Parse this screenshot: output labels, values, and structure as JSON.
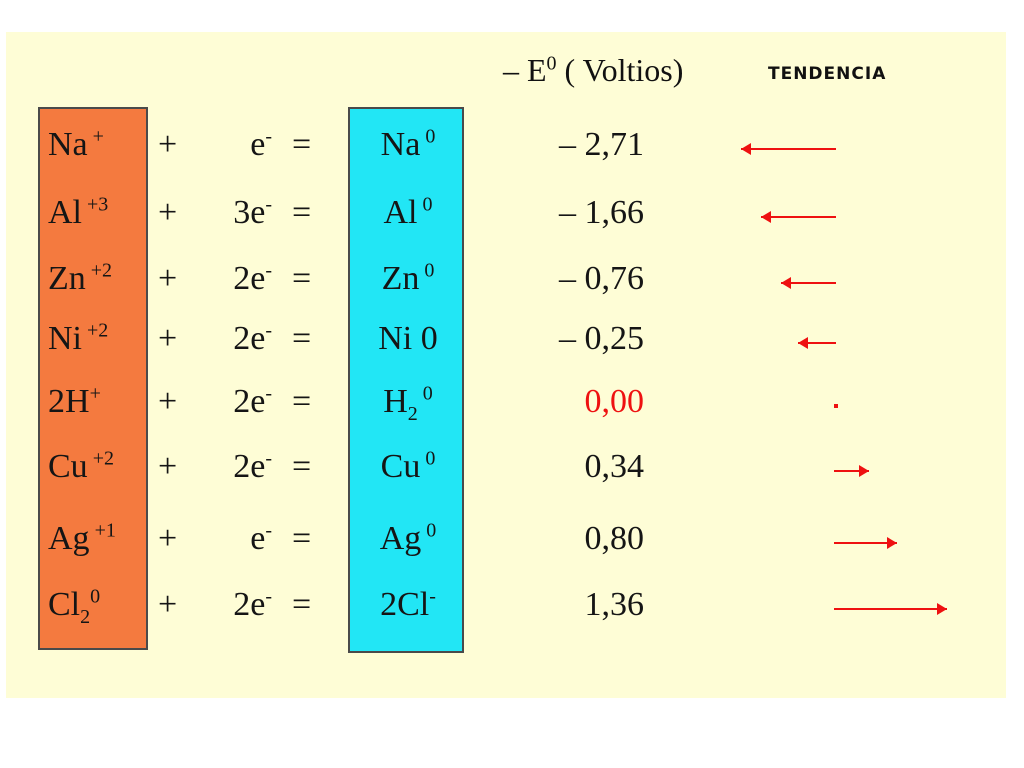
{
  "header": {
    "potential_prefix": "– E",
    "potential_sup": "0",
    "potential_unit": " ( Voltios)",
    "tendency": "TENDENCIA"
  },
  "colors": {
    "oxidized_column": "#f47a3f",
    "reduced_column": "#22e6f5",
    "arrow": "#ee1111",
    "zero_value": "#ee1111"
  },
  "rows": [
    {
      "ox": "Na",
      "ox_sup": " +",
      "ox_sub": "",
      "ox_sup2": "",
      "plus": "+",
      "electrons": "e",
      "e_sup": "-",
      "eq": "=",
      "red": "Na",
      "red_sub": "",
      "red_sup": " 0",
      "potential": "– 2,71",
      "tendency": 0.38,
      "direction": "left"
    },
    {
      "ox": "Al",
      "ox_sup": " +3",
      "ox_sub": "",
      "ox_sup2": "",
      "plus": "+",
      "electrons": "3e",
      "e_sup": "-",
      "eq": "=",
      "red": "Al",
      "red_sub": "",
      "red_sup": " 0",
      "potential": "– 1,66",
      "tendency": 0.3,
      "direction": "left"
    },
    {
      "ox": "Zn",
      "ox_sup": " +2",
      "ox_sub": "",
      "ox_sup2": "",
      "plus": "+",
      "electrons": "2e",
      "e_sup": "-",
      "eq": "=",
      "red": "Zn",
      "red_sub": "",
      "red_sup": " 0",
      "potential": "– 0,76",
      "tendency": 0.22,
      "direction": "left"
    },
    {
      "ox": "Ni",
      "ox_sup": " +2",
      "ox_sub": "",
      "ox_sup2": "",
      "plus": "+",
      "electrons": "2e",
      "e_sup": "-",
      "eq": "=",
      "red": "Ni 0",
      "red_sub": "",
      "red_sup": "",
      "potential": "– 0,25",
      "tendency": 0.15,
      "direction": "left"
    },
    {
      "ox": "2H",
      "ox_sup": "+",
      "ox_sub": "",
      "ox_sup2": "",
      "plus": "+",
      "electrons": "2e",
      "e_sup": "-",
      "eq": "=",
      "red": "H",
      "red_sub": "2",
      "red_sup": " 0",
      "potential": "0,00",
      "tendency": 0,
      "direction": "zero",
      "highlight": true
    },
    {
      "ox": "Cu",
      "ox_sup": " +2",
      "ox_sub": "",
      "ox_sup2": "",
      "plus": "+",
      "electrons": "2e",
      "e_sup": "-",
      "eq": "=",
      "red": "Cu",
      "red_sub": "",
      "red_sup": " 0",
      "potential": "0,34",
      "tendency": 0.14,
      "direction": "right"
    },
    {
      "ox": "Ag",
      "ox_sup": " +1",
      "ox_sub": "",
      "ox_sup2": "",
      "plus": "+",
      "electrons": "e",
      "e_sup": "-",
      "eq": "=",
      "red": "Ag",
      "red_sub": "",
      "red_sup": " 0",
      "potential": "0,80",
      "tendency": 0.25,
      "direction": "right"
    },
    {
      "ox": "Cl",
      "ox_sup": "",
      "ox_sub": "2",
      "ox_sup2": "0",
      "plus": "+",
      "electrons": "2e",
      "e_sup": "-",
      "eq": "=",
      "red": "2Cl",
      "red_sub": "",
      "red_sup": "-",
      "potential": "1,36",
      "tendency": 0.45,
      "direction": "right"
    }
  ]
}
